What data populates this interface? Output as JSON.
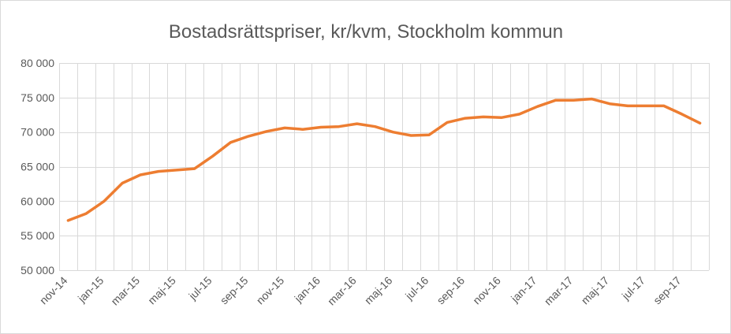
{
  "chart_data": {
    "type": "line",
    "title": "Bostadsrättspriser, kr/kvm, Stockholm kommun",
    "xlabel": "",
    "ylabel": "",
    "ylim": [
      50000,
      80000
    ],
    "y_ticks": [
      50000,
      55000,
      60000,
      65000,
      70000,
      75000,
      80000
    ],
    "y_tick_labels": [
      "50 000",
      "55 000",
      "60 000",
      "65 000",
      "70 000",
      "75 000",
      "80 000"
    ],
    "categories": [
      "nov-14",
      "dec-14",
      "jan-15",
      "feb-15",
      "mar-15",
      "apr-15",
      "maj-15",
      "jun-15",
      "jul-15",
      "aug-15",
      "sep-15",
      "okt-15",
      "nov-15",
      "dec-15",
      "jan-16",
      "feb-16",
      "mar-16",
      "apr-16",
      "maj-16",
      "jun-16",
      "jul-16",
      "aug-16",
      "sep-16",
      "okt-16",
      "nov-16",
      "dec-16",
      "jan-17",
      "feb-17",
      "mar-17",
      "apr-17",
      "maj-17",
      "jun-17",
      "jul-17",
      "aug-17",
      "sep-17",
      "okt-17"
    ],
    "x_tick_labels": [
      "nov-14",
      "jan-15",
      "mar-15",
      "maj-15",
      "jul-15",
      "sep-15",
      "nov-15",
      "jan-16",
      "mar-16",
      "maj-16",
      "jul-16",
      "sep-16",
      "nov-16",
      "jan-17",
      "mar-17",
      "maj-17",
      "jul-17",
      "sep-17"
    ],
    "series": [
      {
        "name": "",
        "color": "#ED7D31",
        "values": [
          57200,
          58200,
          60000,
          62600,
          63800,
          64300,
          64500,
          64700,
          66500,
          68500,
          69400,
          70100,
          70600,
          70400,
          70700,
          70800,
          71200,
          70800,
          70000,
          69500,
          69600,
          71400,
          72000,
          72200,
          72100,
          72600,
          73700,
          74600,
          74600,
          74800,
          74100,
          73800,
          73800,
          73800,
          72600,
          71300
        ]
      }
    ],
    "grid": true,
    "legend": "none"
  }
}
